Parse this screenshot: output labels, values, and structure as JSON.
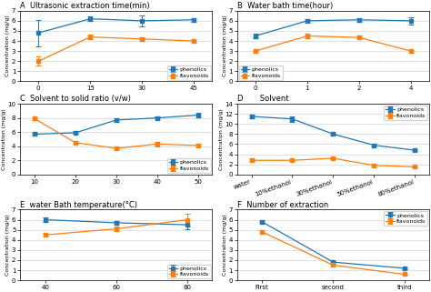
{
  "chart_data": [
    {
      "type": "line",
      "title": "A  Ultrasonic extraction time(min)",
      "categories": [
        "0",
        "15",
        "30",
        "45"
      ],
      "y_label": "Concentration (mg/g)",
      "series": [
        {
          "name": "phenolics",
          "values": [
            4.8,
            6.2,
            6.0,
            6.1
          ],
          "errors": [
            1.3,
            0.25,
            0.55,
            0.2
          ]
        },
        {
          "name": "flavonoids",
          "values": [
            2.0,
            4.4,
            4.2,
            4.0
          ],
          "errors": [
            0.45,
            0.2,
            0.2,
            0.15
          ]
        }
      ],
      "ylim": [
        0,
        7
      ],
      "yticks": [
        0,
        1,
        2,
        3,
        4,
        5,
        6,
        7
      ],
      "marker": "s",
      "grid": "y",
      "legend": "lower right"
    },
    {
      "type": "line",
      "title": "B  Water bath time(hour)",
      "categories": [
        "0",
        "1",
        "2",
        "4"
      ],
      "y_label": "Concentration (mg/g)",
      "series": [
        {
          "name": "phenolics",
          "values": [
            4.5,
            6.0,
            6.1,
            6.0
          ],
          "errors": [
            0.2,
            0.2,
            0.2,
            0.35
          ]
        },
        {
          "name": "flavonoids",
          "values": [
            3.0,
            4.5,
            4.35,
            3.0
          ],
          "errors": [
            0.15,
            0.2,
            0.2,
            0.15
          ]
        }
      ],
      "ylim": [
        0,
        7
      ],
      "yticks": [
        0,
        1,
        2,
        3,
        4,
        5,
        6,
        7
      ],
      "marker": "s",
      "grid": "y",
      "legend": "lower left"
    },
    {
      "type": "line",
      "title": "C  Solvent to solid ratio (v/w)",
      "categories": [
        "10",
        "20",
        "30",
        "40",
        "50"
      ],
      "y_label": "Concentration (mg/g)",
      "series": [
        {
          "name": "phenolics",
          "values": [
            5.7,
            5.9,
            7.7,
            8.0,
            8.4
          ],
          "errors": [
            0.2,
            0.2,
            0.2,
            0.2,
            0.3
          ]
        },
        {
          "name": "flavonoids",
          "values": [
            7.9,
            4.5,
            3.7,
            4.3,
            4.1
          ],
          "errors": [
            0.2,
            0.2,
            0.15,
            0.3,
            0.2
          ]
        }
      ],
      "ylim": [
        0,
        10
      ],
      "yticks": [
        0,
        2,
        4,
        6,
        8,
        10
      ],
      "marker": "s",
      "grid": "y",
      "legend": "lower right"
    },
    {
      "type": "line",
      "title": "D       Solvent",
      "categories": [
        "water",
        "10%ethanol",
        "30%ethanol",
        "50%ethanol",
        "80%ethanol"
      ],
      "y_label": "Concentration (mg/g)",
      "series": [
        {
          "name": "phenolics",
          "values": [
            11.5,
            11.0,
            8.0,
            5.8,
            4.8
          ],
          "errors": [
            0.3,
            0.5,
            0.3,
            0.2,
            0.2
          ]
        },
        {
          "name": "flavonoids",
          "values": [
            2.8,
            2.8,
            3.2,
            1.8,
            1.5
          ],
          "errors": [
            0.15,
            0.15,
            0.2,
            0.15,
            0.1
          ]
        }
      ],
      "ylim": [
        0,
        14
      ],
      "yticks": [
        0,
        2,
        4,
        6,
        8,
        10,
        12,
        14
      ],
      "marker": "s",
      "grid": "y",
      "legend": "upper right"
    },
    {
      "type": "line",
      "title": "E  water Bath temperature(°C)",
      "categories": [
        "40",
        "60",
        "80"
      ],
      "y_label": "Concentration (mg/g)",
      "series": [
        {
          "name": "phenolics",
          "values": [
            6.0,
            5.7,
            5.5
          ],
          "errors": [
            0.2,
            0.2,
            0.45
          ]
        },
        {
          "name": "flavonoids",
          "values": [
            4.5,
            5.1,
            6.0
          ],
          "errors": [
            0.15,
            0.2,
            0.55
          ]
        }
      ],
      "ylim": [
        0,
        7
      ],
      "yticks": [
        0,
        1,
        2,
        3,
        4,
        5,
        6,
        7
      ],
      "marker": "s",
      "grid": "y",
      "legend": "lower right"
    },
    {
      "type": "line",
      "title": "F  Number of extraction",
      "categories": [
        "First",
        "second",
        "third"
      ],
      "y_label": "Concentration (mg/g)",
      "series": [
        {
          "name": "phenolics",
          "values": [
            5.8,
            1.8,
            1.2
          ],
          "errors": [
            0.15,
            0.1,
            0.1
          ]
        },
        {
          "name": "flavonoids",
          "values": [
            4.8,
            1.5,
            0.6
          ],
          "errors": [
            0.2,
            0.1,
            0.05
          ]
        }
      ],
      "ylim": [
        0,
        7
      ],
      "yticks": [
        0,
        1,
        2,
        3,
        4,
        5,
        6,
        7
      ],
      "marker": "s",
      "grid": "y",
      "legend": "upper right"
    }
  ]
}
